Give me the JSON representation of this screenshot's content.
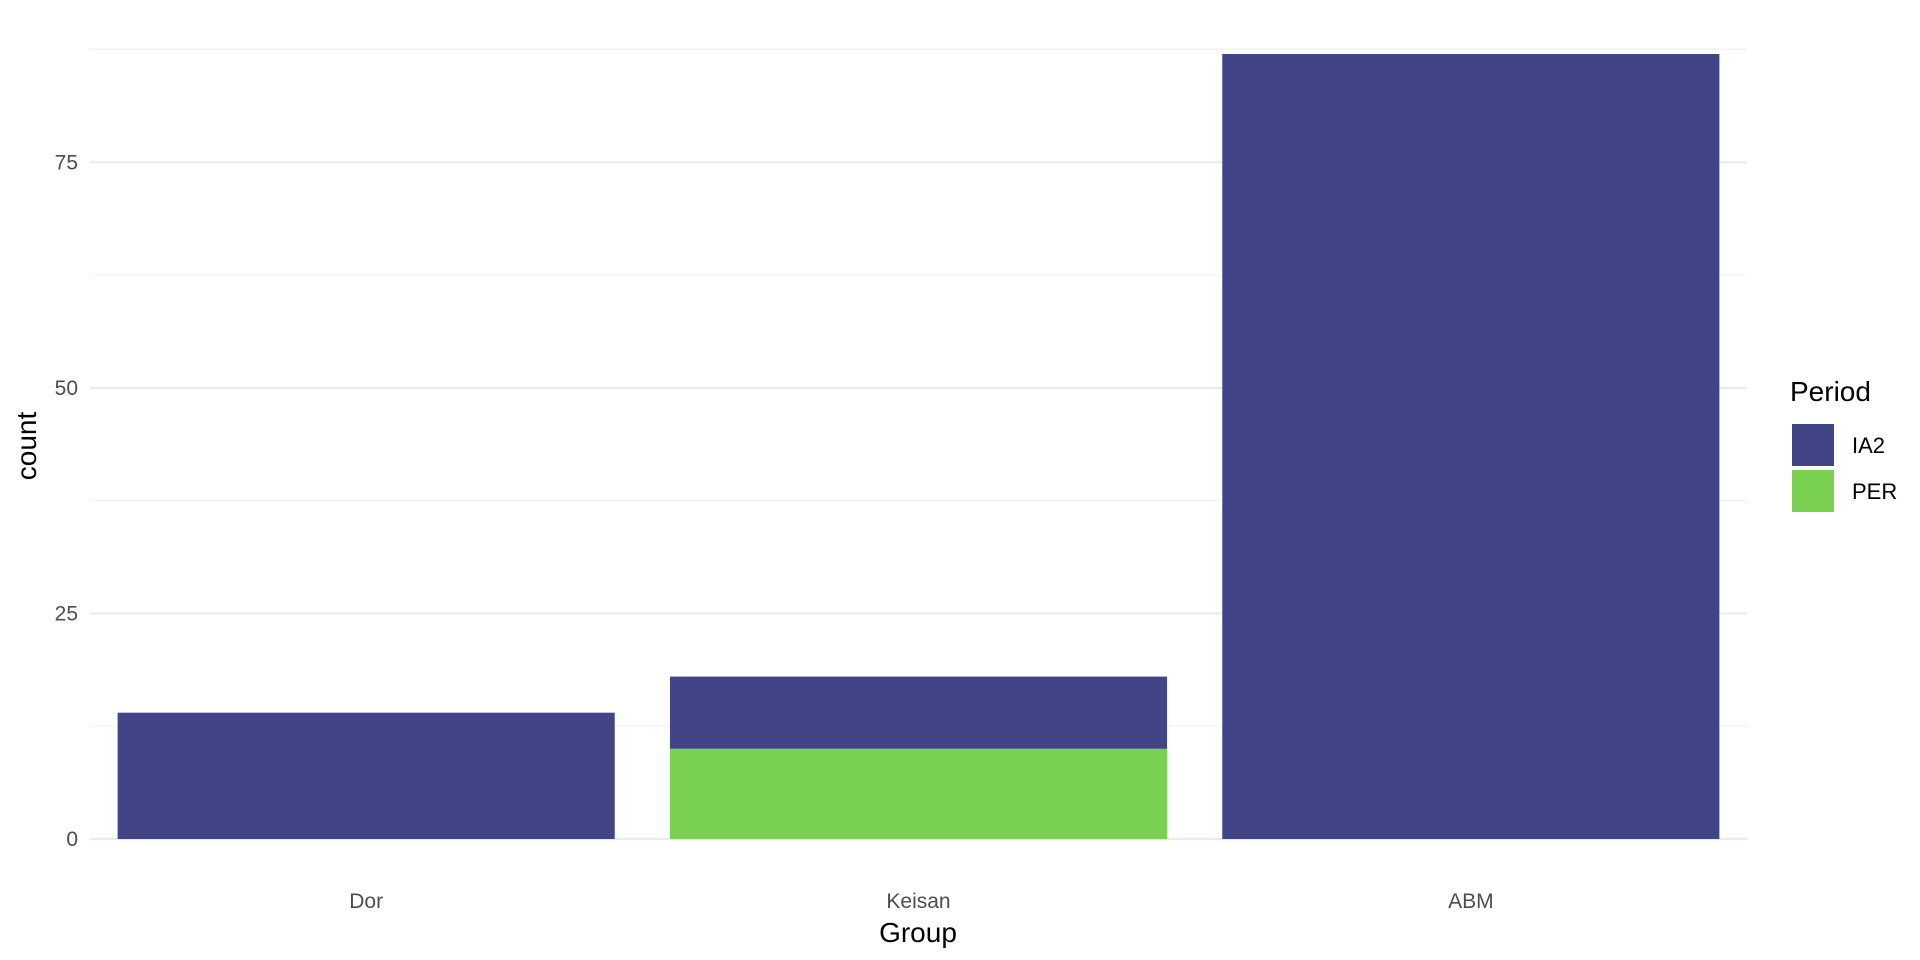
{
  "chart_data": {
    "type": "bar",
    "stacked": true,
    "categories": [
      "Dor",
      "Keisan",
      "ABM"
    ],
    "series": [
      {
        "name": "IA2",
        "color": "#414487",
        "values": [
          14,
          8,
          87
        ]
      },
      {
        "name": "PER",
        "color": "#7AD151",
        "values": [
          0,
          10,
          0
        ]
      }
    ],
    "xlabel": "Group",
    "ylabel": "count",
    "ylim": [
      0,
      87
    ],
    "yticks": [
      0,
      25,
      50,
      75
    ],
    "grid": true,
    "legend": {
      "title": "Period",
      "position": "right"
    }
  }
}
